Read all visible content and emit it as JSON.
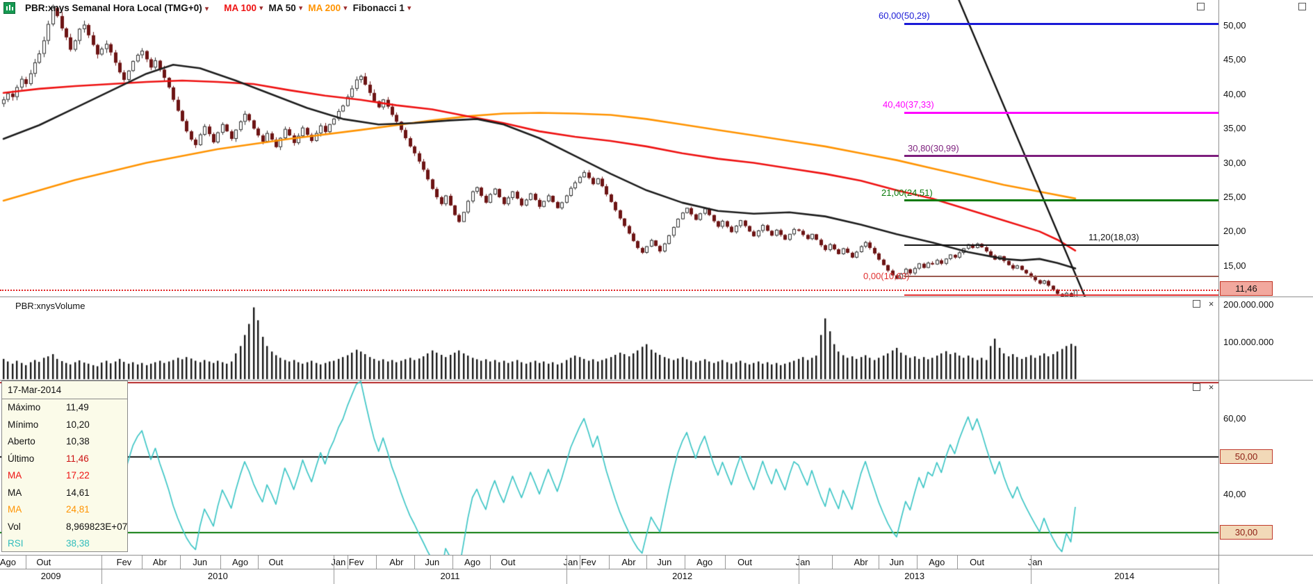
{
  "header": {
    "title": "PBR:xnys Semanal Hora Local (TMG+0)",
    "legend": [
      {
        "label": "MA 100",
        "color": "#ee1111"
      },
      {
        "label": "MA 50",
        "color": "#141414"
      },
      {
        "label": "MA 200",
        "color": "#ff9300"
      },
      {
        "label": "Fibonacci 1",
        "color": "#141414"
      }
    ]
  },
  "icons": {
    "dropdown_glyph": "▾",
    "close_glyph": "×"
  },
  "price_axis": {
    "ticks": [
      {
        "label": "50,00",
        "value": 50
      },
      {
        "label": "45,00",
        "value": 45
      },
      {
        "label": "40,00",
        "value": 40
      },
      {
        "label": "35,00",
        "value": 35
      },
      {
        "label": "30,00",
        "value": 30
      },
      {
        "label": "25,00",
        "value": 25
      },
      {
        "label": "20,00",
        "value": 20
      },
      {
        "label": "15,00",
        "value": 15
      }
    ],
    "last_price_badge": "11,46"
  },
  "fibonacci": [
    {
      "label": "60,00(50,29)",
      "price": 50.29,
      "color": "#1a1ad6"
    },
    {
      "label": "40,40(37,33)",
      "price": 37.33,
      "color": "#ff00ff"
    },
    {
      "label": "30,80(30,99)",
      "price": 30.99,
      "color": "#7d1f7d"
    },
    {
      "label": "21,00(24,51)",
      "price": 24.51,
      "color": "#0a7a0a"
    },
    {
      "label": "11,20(18,03)",
      "price": 18.03,
      "color": "#141414"
    },
    {
      "label": "0,00(10,63)",
      "price": 10.63,
      "color": "#e03030"
    }
  ],
  "volume_panel": {
    "title": "PBR:xnysVolume",
    "axis_labels": [
      "200.000.000",
      "100.000.000"
    ]
  },
  "rsi_panel": {
    "axis_labels": [
      "60,00",
      "40,00"
    ],
    "badges": [
      "50,00",
      "30,00"
    ]
  },
  "tooltip": {
    "date": "17-Mar-2014",
    "rows": [
      {
        "label": "Máximo",
        "value": "11,49",
        "label_color": "#111111",
        "value_color": "#111111"
      },
      {
        "label": "Mínimo",
        "value": "10,20",
        "label_color": "#111111",
        "value_color": "#111111"
      },
      {
        "label": "Aberto",
        "value": "10,38",
        "label_color": "#111111",
        "value_color": "#111111"
      },
      {
        "label": "Último",
        "value": "11,46",
        "label_color": "#111111",
        "value_color": "#cc1111"
      },
      {
        "label": "MA",
        "value": "17,22",
        "label_color": "#ee1111",
        "value_color": "#ee1111"
      },
      {
        "label": "MA",
        "value": "14,61",
        "label_color": "#111111",
        "value_color": "#111111"
      },
      {
        "label": "MA",
        "value": "24,81",
        "label_color": "#ff9300",
        "value_color": "#ff9300"
      },
      {
        "label": "Vol",
        "value": "8,969823E+07",
        "label_color": "#111111",
        "value_color": "#111111"
      },
      {
        "label": "RSI",
        "value": "38,38",
        "label_color": "#2fbcbc",
        "value_color": "#2fbcbc"
      }
    ]
  },
  "time_axis": {
    "months": [
      {
        "label": "Ago",
        "week": 1
      },
      {
        "label": "Out",
        "week": 9
      },
      {
        "label": "Fev",
        "week": 27
      },
      {
        "label": "Abr",
        "week": 35
      },
      {
        "label": "Jun",
        "week": 44
      },
      {
        "label": "Ago",
        "week": 53
      },
      {
        "label": "Out",
        "week": 61
      },
      {
        "label": "Jan",
        "week": 75
      },
      {
        "label": "Fev",
        "week": 79
      },
      {
        "label": "Abr",
        "week": 88
      },
      {
        "label": "Jun",
        "week": 96
      },
      {
        "label": "Ago",
        "week": 105
      },
      {
        "label": "Out",
        "week": 113
      },
      {
        "label": "Jan",
        "week": 127
      },
      {
        "label": "Fev",
        "week": 131
      },
      {
        "label": "Abr",
        "week": 140
      },
      {
        "label": "Jun",
        "week": 148
      },
      {
        "label": "Ago",
        "week": 157
      },
      {
        "label": "Out",
        "week": 166
      },
      {
        "label": "Jan",
        "week": 179
      },
      {
        "label": "Abr",
        "week": 192
      },
      {
        "label": "Jun",
        "week": 200
      },
      {
        "label": "Ago",
        "week": 209
      },
      {
        "label": "Out",
        "week": 218
      },
      {
        "label": "Jan",
        "week": 231
      }
    ],
    "years": [
      {
        "label": "2009",
        "from_week": -1,
        "to_week": 22
      },
      {
        "label": "2010",
        "from_week": 22,
        "to_week": 74
      },
      {
        "label": "2011",
        "from_week": 74,
        "to_week": 126
      },
      {
        "label": "2012",
        "from_week": 126,
        "to_week": 178
      },
      {
        "label": "2013",
        "from_week": 178,
        "to_week": 230
      },
      {
        "label": "2014",
        "from_week": 230,
        "to_week": 272
      }
    ]
  },
  "chart_data": {
    "type": "candlestick",
    "symbol": "PBR:xnys",
    "timeframe": "Semanal",
    "price_ylim": [
      10,
      53.7
    ],
    "panels": [
      "price",
      "volume",
      "rsi"
    ],
    "candles": {
      "interval": "week",
      "start": "Ago 2009",
      "end": "17-Mar-2014",
      "closes": [
        39.2,
        40.1,
        39.6,
        41.0,
        42.2,
        41.5,
        43.0,
        44.6,
        45.9,
        47.8,
        50.2,
        52.6,
        51.4,
        49.6,
        48.3,
        46.5,
        47.8,
        49.5,
        50.1,
        48.6,
        47.2,
        45.8,
        46.6,
        47.3,
        46.1,
        44.6,
        43.2,
        42.1,
        43.4,
        44.8,
        45.7,
        46.3,
        45.1,
        43.9,
        44.9,
        43.6,
        42.4,
        41.0,
        39.2,
        37.6,
        36.1,
        34.6,
        33.4,
        32.6,
        34.1,
        35.3,
        34.2,
        33.0,
        34.4,
        35.6,
        34.6,
        33.5,
        34.8,
        36.0,
        37.1,
        36.2,
        35.0,
        34.0,
        33.1,
        34.3,
        33.4,
        32.3,
        33.6,
        34.9,
        34.0,
        32.9,
        33.9,
        35.1,
        34.1,
        33.2,
        34.3,
        35.4,
        34.5,
        35.6,
        36.4,
        37.5,
        38.3,
        39.6,
        40.8,
        42.1,
        42.6,
        41.4,
        40.2,
        39.0,
        38.1,
        39.2,
        38.2,
        37.0,
        36.0,
        34.8,
        33.6,
        32.4,
        31.4,
        30.2,
        29.0,
        27.6,
        26.2,
        25.0,
        24.0,
        25.2,
        23.8,
        22.4,
        21.4,
        22.8,
        24.4,
        25.8,
        26.4,
        25.2,
        24.2,
        25.4,
        26.2,
        25.0,
        24.0,
        24.9,
        25.8,
        24.8,
        23.8,
        24.6,
        25.5,
        24.6,
        23.6,
        24.4,
        25.2,
        24.3,
        23.4,
        24.2,
        25.2,
        26.3,
        27.1,
        27.9,
        28.6,
        27.8,
        26.9,
        27.7,
        26.6,
        25.4,
        24.3,
        23.1,
        21.9,
        20.8,
        19.7,
        18.6,
        17.6,
        16.9,
        17.8,
        18.7,
        17.9,
        17.1,
        18.2,
        19.4,
        20.6,
        21.8,
        22.7,
        23.4,
        22.5,
        21.7,
        22.6,
        23.3,
        22.4,
        21.5,
        20.7,
        21.5,
        20.7,
        19.9,
        20.8,
        21.6,
        20.8,
        20.0,
        19.3,
        20.1,
        20.9,
        20.1,
        19.4,
        20.2,
        19.5,
        18.8,
        19.6,
        20.3,
        20.1,
        19.5,
        18.9,
        19.6,
        18.8,
        18.0,
        17.3,
        18.1,
        17.4,
        16.7,
        17.5,
        16.9,
        16.2,
        17.0,
        17.8,
        18.4,
        17.6,
        16.8,
        15.9,
        15.1,
        14.3,
        13.6,
        13.1,
        13.8,
        14.5,
        13.9,
        14.6,
        15.3,
        14.7,
        15.4,
        15.2,
        15.8,
        15.3,
        16.0,
        16.6,
        16.2,
        16.9,
        17.5,
        18.1,
        17.6,
        18.2,
        17.7,
        17.1,
        16.5,
        15.9,
        16.4,
        15.7,
        15.1,
        14.6,
        15.0,
        14.4,
        13.9,
        13.4,
        12.9,
        12.4,
        12.8,
        12.1,
        11.5,
        10.9,
        10.5,
        11.0,
        10.4,
        11.46
      ],
      "last": {
        "open": 10.38,
        "high": 11.49,
        "low": 10.2,
        "close": 11.46
      }
    },
    "volumes_millions": [
      55,
      48,
      42,
      50,
      44,
      38,
      46,
      52,
      47,
      58,
      62,
      68,
      55,
      49,
      44,
      40,
      46,
      51,
      45,
      42,
      38,
      35,
      45,
      50,
      43,
      48,
      55,
      47,
      42,
      46,
      40,
      44,
      38,
      42,
      46,
      50,
      44,
      48,
      52,
      58,
      54,
      60,
      56,
      50,
      46,
      52,
      48,
      44,
      50,
      46,
      42,
      48,
      70,
      90,
      120,
      150,
      195,
      160,
      115,
      90,
      75,
      65,
      58,
      52,
      48,
      52,
      46,
      42,
      46,
      50,
      44,
      40,
      44,
      48,
      50,
      55,
      60,
      65,
      72,
      80,
      75,
      68,
      60,
      55,
      50,
      54,
      48,
      52,
      46,
      50,
      54,
      58,
      52,
      56,
      62,
      70,
      78,
      72,
      66,
      60,
      66,
      72,
      78,
      70,
      64,
      58,
      54,
      50,
      54,
      48,
      52,
      46,
      50,
      44,
      48,
      52,
      46,
      42,
      46,
      50,
      44,
      48,
      42,
      46,
      40,
      44,
      52,
      58,
      64,
      60,
      55,
      50,
      54,
      48,
      52,
      56,
      60,
      66,
      72,
      68,
      62,
      70,
      78,
      88,
      95,
      80,
      72,
      66,
      60,
      56,
      52,
      56,
      60,
      54,
      50,
      46,
      50,
      54,
      48,
      44,
      48,
      52,
      46,
      42,
      46,
      50,
      44,
      40,
      44,
      48,
      42,
      46,
      40,
      44,
      38,
      42,
      46,
      50,
      55,
      60,
      52,
      58,
      64,
      120,
      165,
      130,
      95,
      75,
      65,
      58,
      62,
      55,
      60,
      65,
      58,
      52,
      58,
      64,
      70,
      78,
      85,
      72,
      65,
      58,
      62,
      55,
      60,
      54,
      58,
      64,
      70,
      76,
      68,
      72,
      64,
      58,
      64,
      58,
      52,
      58,
      52,
      90,
      110,
      85,
      70,
      62,
      68,
      60,
      55,
      60,
      65,
      58,
      64,
      70,
      62,
      68,
      75,
      82,
      90,
      96,
      90
    ],
    "ma50": [
      [
        0,
        33.5
      ],
      [
        8,
        35.5
      ],
      [
        16,
        38.0
      ],
      [
        24,
        40.5
      ],
      [
        32,
        43.0
      ],
      [
        38,
        44.3
      ],
      [
        44,
        43.8
      ],
      [
        52,
        42.0
      ],
      [
        60,
        40.0
      ],
      [
        68,
        38.0
      ],
      [
        76,
        36.4
      ],
      [
        84,
        35.6
      ],
      [
        92,
        35.8
      ],
      [
        100,
        36.2
      ],
      [
        106,
        36.4
      ],
      [
        112,
        35.6
      ],
      [
        120,
        33.6
      ],
      [
        128,
        31.0
      ],
      [
        136,
        28.4
      ],
      [
        144,
        26.0
      ],
      [
        152,
        24.2
      ],
      [
        160,
        23.0
      ],
      [
        168,
        22.6
      ],
      [
        176,
        22.8
      ],
      [
        184,
        22.2
      ],
      [
        192,
        21.0
      ],
      [
        200,
        19.6
      ],
      [
        208,
        18.4
      ],
      [
        216,
        17.0
      ],
      [
        224,
        16.0
      ],
      [
        228,
        15.8
      ],
      [
        232,
        16.0
      ],
      [
        236,
        15.4
      ],
      [
        240,
        14.61
      ]
    ],
    "ma100": [
      [
        0,
        40.2
      ],
      [
        8,
        40.8
      ],
      [
        16,
        41.2
      ],
      [
        24,
        41.5
      ],
      [
        32,
        41.8
      ],
      [
        40,
        42.0
      ],
      [
        48,
        41.8
      ],
      [
        56,
        41.5
      ],
      [
        64,
        40.6
      ],
      [
        72,
        39.8
      ],
      [
        80,
        39.2
      ],
      [
        88,
        38.4
      ],
      [
        96,
        37.8
      ],
      [
        104,
        36.8
      ],
      [
        112,
        35.8
      ],
      [
        120,
        34.6
      ],
      [
        128,
        33.8
      ],
      [
        136,
        33.2
      ],
      [
        144,
        32.4
      ],
      [
        152,
        31.4
      ],
      [
        160,
        30.6
      ],
      [
        168,
        30.0
      ],
      [
        176,
        29.2
      ],
      [
        184,
        28.4
      ],
      [
        192,
        27.4
      ],
      [
        200,
        26.0
      ],
      [
        208,
        24.8
      ],
      [
        216,
        23.2
      ],
      [
        224,
        21.6
      ],
      [
        232,
        20.0
      ],
      [
        236,
        18.8
      ],
      [
        240,
        17.22
      ]
    ],
    "ma200": [
      [
        0,
        24.5
      ],
      [
        16,
        27.5
      ],
      [
        32,
        30.0
      ],
      [
        48,
        32.0
      ],
      [
        64,
        33.5
      ],
      [
        80,
        34.8
      ],
      [
        96,
        36.2
      ],
      [
        104,
        36.8
      ],
      [
        112,
        37.2
      ],
      [
        120,
        37.3
      ],
      [
        128,
        37.2
      ],
      [
        136,
        37.0
      ],
      [
        144,
        36.4
      ],
      [
        152,
        35.6
      ],
      [
        160,
        34.8
      ],
      [
        168,
        34.0
      ],
      [
        176,
        33.2
      ],
      [
        184,
        32.4
      ],
      [
        192,
        31.4
      ],
      [
        200,
        30.4
      ],
      [
        208,
        29.2
      ],
      [
        216,
        28.0
      ],
      [
        224,
        26.8
      ],
      [
        232,
        25.8
      ],
      [
        240,
        24.81
      ]
    ],
    "trendline": {
      "from": {
        "week": 206,
        "price": 65.9
      },
      "to": {
        "week": 243,
        "price": 9.2
      }
    },
    "aux_line": {
      "price": 13.45,
      "color": "#9b5a50"
    },
    "rsi": {
      "period": 14,
      "levels": [
        70,
        50,
        30
      ],
      "last_value": 38.38
    },
    "volume_axis_max_millions": 200
  }
}
